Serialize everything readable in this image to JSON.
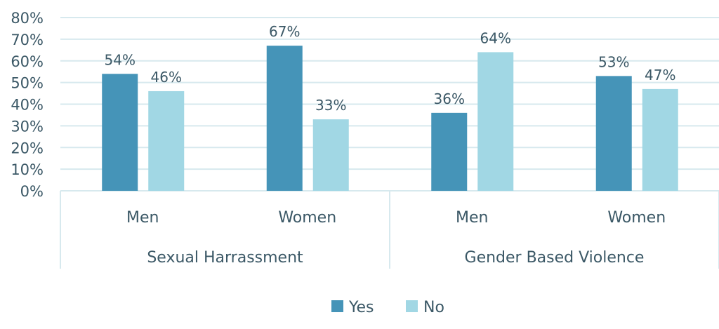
{
  "chart_data": {
    "type": "bar",
    "groups": [
      {
        "label": "Sexual Harrassment",
        "categories": [
          "Men",
          "Women"
        ]
      },
      {
        "label": "Gender Based Violence",
        "categories": [
          "Men",
          "Women"
        ]
      }
    ],
    "series": [
      {
        "name": "Yes",
        "color": "#4594b8",
        "values": [
          54,
          67,
          36,
          53
        ],
        "labels": [
          "54%",
          "67%",
          "36%",
          "53%"
        ]
      },
      {
        "name": "No",
        "color": "#a1d7e4",
        "values": [
          46,
          33,
          64,
          47
        ],
        "labels": [
          "46%",
          "33%",
          "64%",
          "47%"
        ]
      }
    ],
    "ylim": [
      0,
      80
    ],
    "yticks": [
      "0%",
      "10%",
      "20%",
      "30%",
      "40%",
      "50%",
      "60%",
      "70%",
      "80%"
    ],
    "grid": true,
    "legend": "bottom",
    "gridColor": "#d7e9ee"
  }
}
